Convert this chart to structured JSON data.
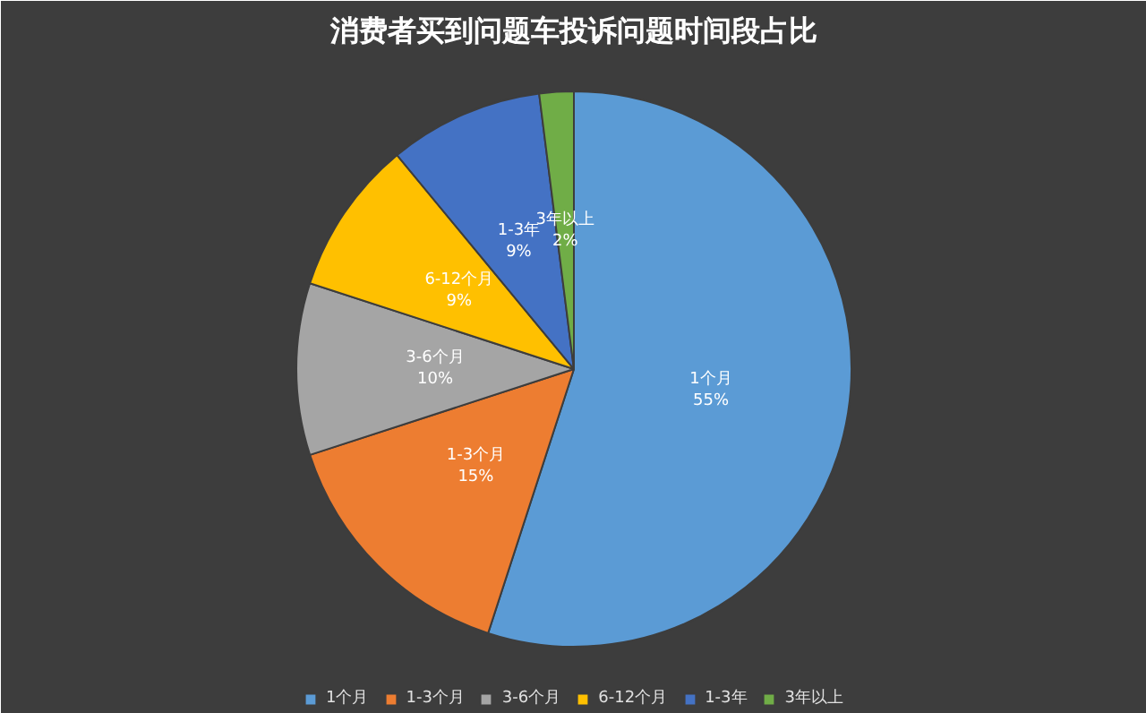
{
  "chart_data": {
    "type": "pie",
    "title": "消费者买到问题车投诉问题时间段占比",
    "categories": [
      "1个月",
      "1-3个月",
      "3-6个月",
      "6-12个月",
      "1-3年",
      "3年以上"
    ],
    "values": [
      55,
      15,
      10,
      9,
      9,
      2
    ],
    "colors": [
      "#5b9bd5",
      "#ed7d31",
      "#a5a5a5",
      "#ffc000",
      "#4472c4",
      "#70ad47"
    ],
    "data_labels": true,
    "value_labels": [
      "55%",
      "15%",
      "10%",
      "9%",
      "9%",
      "2%"
    ],
    "legend": "bottom"
  }
}
